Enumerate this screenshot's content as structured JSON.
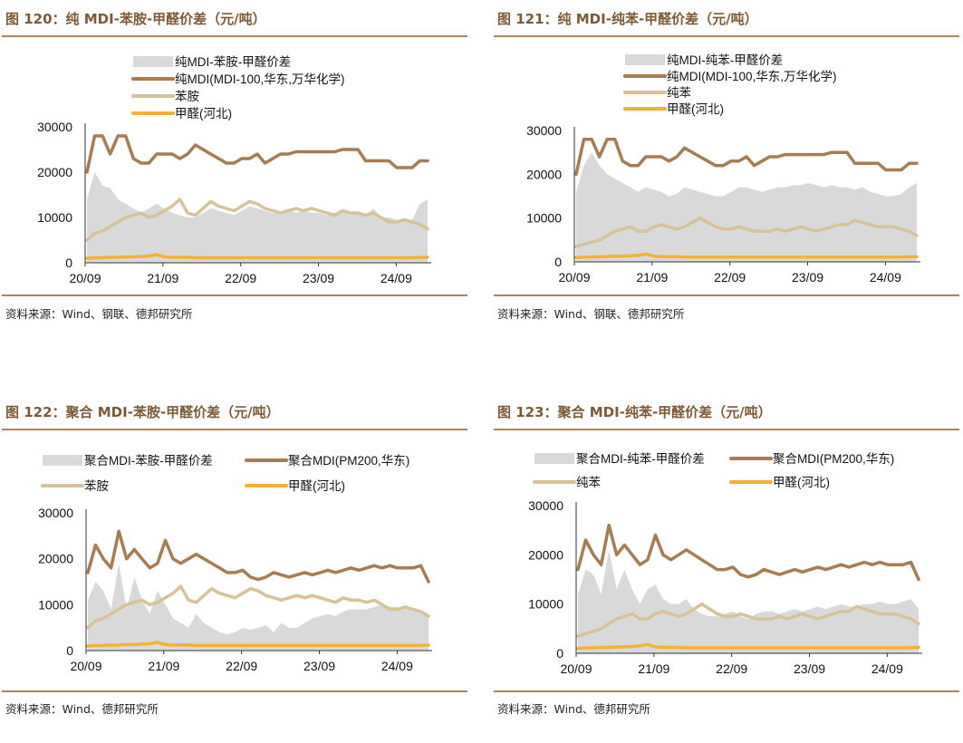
{
  "panels": [
    {
      "title": "图 120：纯 MDI-苯胺-甲醛价差（元/吨）",
      "source": "资料来源：Wind、钢联、德邦研究所",
      "chart_data": {
        "type": "line",
        "legend_layout": "stacked",
        "ylim": [
          0,
          30000
        ],
        "yticks": [
          0,
          10000,
          20000,
          30000
        ],
        "xticks": [
          "20/09",
          "21/09",
          "22/09",
          "23/09",
          "24/09"
        ],
        "series": [
          {
            "name": "纯MDI-苯胺-甲醛价差",
            "kind": "area",
            "color": "#d9d9d9",
            "values": [
              14000,
              20000,
              17000,
              16500,
              14000,
              13000,
              12000,
              11000,
              12000,
              13000,
              12000,
              11000,
              10500,
              10000,
              10000,
              11000,
              12000,
              11500,
              11000,
              10500,
              11500,
              12500,
              12000,
              11500,
              11000,
              11000,
              12000,
              11000,
              11500,
              11000,
              11000,
              10500,
              11000,
              11500,
              11000,
              11000,
              10500,
              12000,
              10000,
              10000,
              9500,
              9000,
              9500,
              13000,
              14000
            ]
          },
          {
            "name": "纯MDI(MDI-100,华东,万华化学)",
            "kind": "line",
            "color": "#a67c52",
            "values": [
              20000,
              28000,
              28000,
              24000,
              28000,
              28000,
              23000,
              22000,
              22000,
              24000,
              24000,
              24000,
              23000,
              24000,
              26000,
              25000,
              24000,
              23000,
              22000,
              22000,
              23000,
              23000,
              24000,
              22000,
              23000,
              24000,
              24000,
              24500,
              24500,
              24500,
              24500,
              24500,
              24500,
              25000,
              25000,
              25000,
              22500,
              22500,
              22500,
              22500,
              21000,
              21000,
              21000,
              22500,
              22500
            ]
          },
          {
            "name": "苯胺",
            "kind": "line",
            "color": "#d6c298",
            "values": [
              5000,
              6500,
              7000,
              8000,
              9000,
              10000,
              10500,
              11000,
              10000,
              10500,
              11500,
              12500,
              14000,
              11000,
              10500,
              12000,
              13500,
              12500,
              12000,
              11500,
              12500,
              13500,
              13000,
              12000,
              11500,
              11000,
              11500,
              12000,
              11500,
              12000,
              11500,
              11000,
              10500,
              11500,
              11000,
              11000,
              10500,
              11000,
              10000,
              9000,
              9000,
              9500,
              9000,
              8500,
              7500
            ]
          },
          {
            "name": "甲醛(河北)",
            "kind": "line",
            "color": "#f2b233",
            "values": [
              1000,
              1100,
              1100,
              1200,
              1200,
              1300,
              1300,
              1400,
              1500,
              1800,
              1300,
              1200,
              1200,
              1200,
              1100,
              1100,
              1100,
              1100,
              1100,
              1100,
              1100,
              1100,
              1100,
              1100,
              1100,
              1100,
              1100,
              1100,
              1100,
              1100,
              1100,
              1100,
              1100,
              1100,
              1100,
              1100,
              1100,
              1100,
              1100,
              1100,
              1100,
              1100,
              1100,
              1150,
              1200
            ]
          }
        ]
      }
    },
    {
      "title": "图 121：纯 MDI-纯苯-甲醛价差（元/吨）",
      "source": "资料来源：Wind、钢联、德邦研究所",
      "chart_data": {
        "type": "line",
        "legend_layout": "stacked",
        "ylim": [
          0,
          30000
        ],
        "yticks": [
          0,
          10000,
          20000,
          30000
        ],
        "xticks": [
          "20/09",
          "21/09",
          "22/09",
          "23/09",
          "24/09"
        ],
        "series": [
          {
            "name": "纯MDI-纯苯-甲醛价差",
            "kind": "area",
            "color": "#d9d9d9",
            "values": [
              16000,
              22000,
              25000,
              22000,
              20000,
              19000,
              18000,
              17000,
              16000,
              17000,
              16500,
              16000,
              15000,
              15500,
              17000,
              16500,
              16000,
              15500,
              15000,
              15000,
              16000,
              17000,
              17000,
              16500,
              16000,
              16500,
              17000,
              17000,
              17500,
              17500,
              18000,
              17500,
              17000,
              17500,
              17000,
              17000,
              16500,
              17000,
              16000,
              15500,
              15000,
              15000,
              15500,
              17000,
              18000
            ]
          },
          {
            "name": "纯MDI(MDI-100,华东,万华化学)",
            "kind": "line",
            "color": "#a67c52",
            "values": [
              20000,
              28000,
              28000,
              24000,
              28000,
              28000,
              23000,
              22000,
              22000,
              24000,
              24000,
              24000,
              23000,
              24000,
              26000,
              25000,
              24000,
              23000,
              22000,
              22000,
              23000,
              23000,
              24000,
              22000,
              23000,
              24000,
              24000,
              24500,
              24500,
              24500,
              24500,
              24500,
              24500,
              25000,
              25000,
              25000,
              22500,
              22500,
              22500,
              22500,
              21000,
              21000,
              21000,
              22500,
              22500
            ]
          },
          {
            "name": "纯苯",
            "kind": "line",
            "color": "#d6c298",
            "values": [
              3500,
              4000,
              4500,
              5000,
              6000,
              7000,
              7500,
              8000,
              7000,
              7000,
              8000,
              8500,
              8000,
              7500,
              8000,
              9000,
              10000,
              9000,
              8000,
              7500,
              7500,
              8000,
              7500,
              7000,
              7000,
              7000,
              7500,
              7000,
              7500,
              8000,
              7500,
              7000,
              7500,
              8000,
              8500,
              8500,
              9500,
              9000,
              8500,
              8000,
              8000,
              8000,
              7500,
              7000,
              6000
            ]
          },
          {
            "name": "甲醛(河北)",
            "kind": "line",
            "color": "#f2b233",
            "values": [
              1000,
              1100,
              1100,
              1200,
              1200,
              1300,
              1300,
              1400,
              1500,
              1800,
              1300,
              1200,
              1200,
              1200,
              1100,
              1100,
              1100,
              1100,
              1100,
              1100,
              1100,
              1100,
              1100,
              1100,
              1100,
              1100,
              1100,
              1100,
              1100,
              1100,
              1100,
              1100,
              1100,
              1100,
              1100,
              1100,
              1100,
              1100,
              1100,
              1100,
              1100,
              1100,
              1100,
              1150,
              1200
            ]
          }
        ]
      }
    },
    {
      "title": "图 122：聚合 MDI-苯胺-甲醛价差（元/吨）",
      "source": "资料来源：Wind、德邦研究所",
      "chart_data": {
        "type": "line",
        "legend_layout": "grid",
        "ylim": [
          0,
          30000
        ],
        "yticks": [
          0,
          10000,
          20000,
          30000
        ],
        "xticks": [
          "20/09",
          "21/09",
          "22/09",
          "23/09",
          "24/09"
        ],
        "series": [
          {
            "name": "聚合MDI-苯胺-甲醛价差",
            "kind": "area",
            "color": "#d9d9d9",
            "values": [
              11000,
              15000,
              13000,
              9000,
              19000,
              9000,
              16000,
              11000,
              8000,
              13000,
              10000,
              7000,
              6000,
              5000,
              8000,
              6000,
              5000,
              4000,
              3500,
              4000,
              5000,
              4500,
              5000,
              5500,
              4000,
              6000,
              5000,
              5000,
              6000,
              7000,
              7500,
              8000,
              7500,
              8500,
              9000,
              9000,
              9000,
              9500,
              10000,
              9500,
              9500,
              9000,
              9000,
              8500,
              8000
            ]
          },
          {
            "name": "聚合MDI(PM200,华东)",
            "kind": "line",
            "color": "#a67c52",
            "values": [
              17000,
              23000,
              20000,
              18000,
              26000,
              20000,
              22000,
              20000,
              18000,
              19000,
              24000,
              20000,
              19000,
              20000,
              21000,
              20000,
              19000,
              18000,
              17000,
              17000,
              17500,
              16000,
              15500,
              16000,
              17000,
              16500,
              16000,
              16500,
              17000,
              16500,
              17000,
              17500,
              17000,
              17500,
              18000,
              17500,
              18000,
              18500,
              18000,
              18500,
              18000,
              18000,
              18000,
              18500,
              15000
            ]
          },
          {
            "name": "苯胺",
            "kind": "line",
            "color": "#d6c298",
            "values": [
              5000,
              6500,
              7000,
              8000,
              9000,
              10000,
              10500,
              11000,
              10000,
              10500,
              11500,
              12500,
              14000,
              11000,
              10500,
              12000,
              13500,
              12500,
              12000,
              11500,
              12500,
              13500,
              13000,
              12000,
              11500,
              11000,
              11500,
              12000,
              11500,
              12000,
              11500,
              11000,
              10500,
              11500,
              11000,
              11000,
              10500,
              11000,
              10000,
              9000,
              9000,
              9500,
              9000,
              8500,
              7500
            ]
          },
          {
            "name": "甲醛(河北)",
            "kind": "line",
            "color": "#f2b233",
            "values": [
              1000,
              1100,
              1100,
              1200,
              1200,
              1300,
              1300,
              1400,
              1500,
              1800,
              1300,
              1200,
              1200,
              1200,
              1100,
              1100,
              1100,
              1100,
              1100,
              1100,
              1100,
              1100,
              1100,
              1100,
              1100,
              1100,
              1100,
              1100,
              1100,
              1100,
              1100,
              1100,
              1100,
              1100,
              1100,
              1100,
              1100,
              1100,
              1100,
              1100,
              1100,
              1100,
              1100,
              1150,
              1200
            ]
          }
        ]
      }
    },
    {
      "title": "图 123：聚合 MDI-纯苯-甲醛价差（元/吨）",
      "source": "资料来源：Wind、德邦研究所",
      "chart_data": {
        "type": "line",
        "legend_layout": "grid",
        "ylim": [
          0,
          30000
        ],
        "yticks": [
          0,
          10000,
          20000,
          30000
        ],
        "xticks": [
          "20/09",
          "21/09",
          "22/09",
          "23/09",
          "24/09"
        ],
        "series": [
          {
            "name": "聚合MDI-纯苯-甲醛价差",
            "kind": "area",
            "color": "#d9d9d9",
            "values": [
              12000,
              17000,
              16000,
              12000,
              21000,
              13000,
              17000,
              13000,
              10000,
              13000,
              14000,
              11000,
              10000,
              10000,
              11000,
              9000,
              8000,
              7500,
              7500,
              8000,
              8500,
              7500,
              7000,
              8000,
              8500,
              8500,
              8000,
              8500,
              9000,
              8500,
              9000,
              9500,
              9000,
              9500,
              10000,
              9500,
              9500,
              10000,
              10000,
              10500,
              10000,
              10000,
              10500,
              11000,
              9000
            ]
          },
          {
            "name": "聚合MDI(PM200,华东)",
            "kind": "line",
            "color": "#a67c52",
            "values": [
              17000,
              23000,
              20000,
              18000,
              26000,
              20000,
              22000,
              20000,
              18000,
              19000,
              24000,
              20000,
              19000,
              20000,
              21000,
              20000,
              19000,
              18000,
              17000,
              17000,
              17500,
              16000,
              15500,
              16000,
              17000,
              16500,
              16000,
              16500,
              17000,
              16500,
              17000,
              17500,
              17000,
              17500,
              18000,
              17500,
              18000,
              18500,
              18000,
              18500,
              18000,
              18000,
              18000,
              18500,
              15000
            ]
          },
          {
            "name": "纯苯",
            "kind": "line",
            "color": "#d6c298",
            "values": [
              3500,
              4000,
              4500,
              5000,
              6000,
              7000,
              7500,
              8000,
              7000,
              7000,
              8000,
              8500,
              8000,
              7500,
              8000,
              9000,
              10000,
              9000,
              8000,
              7500,
              7500,
              8000,
              7500,
              7000,
              7000,
              7000,
              7500,
              7000,
              7500,
              8000,
              7500,
              7000,
              7500,
              8000,
              8500,
              8500,
              9500,
              9000,
              8500,
              8000,
              8000,
              8000,
              7500,
              7000,
              6000
            ]
          },
          {
            "name": "甲醛(河北)",
            "kind": "line",
            "color": "#f2b233",
            "values": [
              1000,
              1100,
              1100,
              1200,
              1200,
              1300,
              1300,
              1400,
              1500,
              1800,
              1300,
              1200,
              1200,
              1200,
              1100,
              1100,
              1100,
              1100,
              1100,
              1100,
              1100,
              1100,
              1100,
              1100,
              1100,
              1100,
              1100,
              1100,
              1100,
              1100,
              1100,
              1100,
              1100,
              1100,
              1100,
              1100,
              1100,
              1100,
              1100,
              1100,
              1100,
              1100,
              1100,
              1150,
              1200
            ]
          }
        ]
      }
    }
  ]
}
